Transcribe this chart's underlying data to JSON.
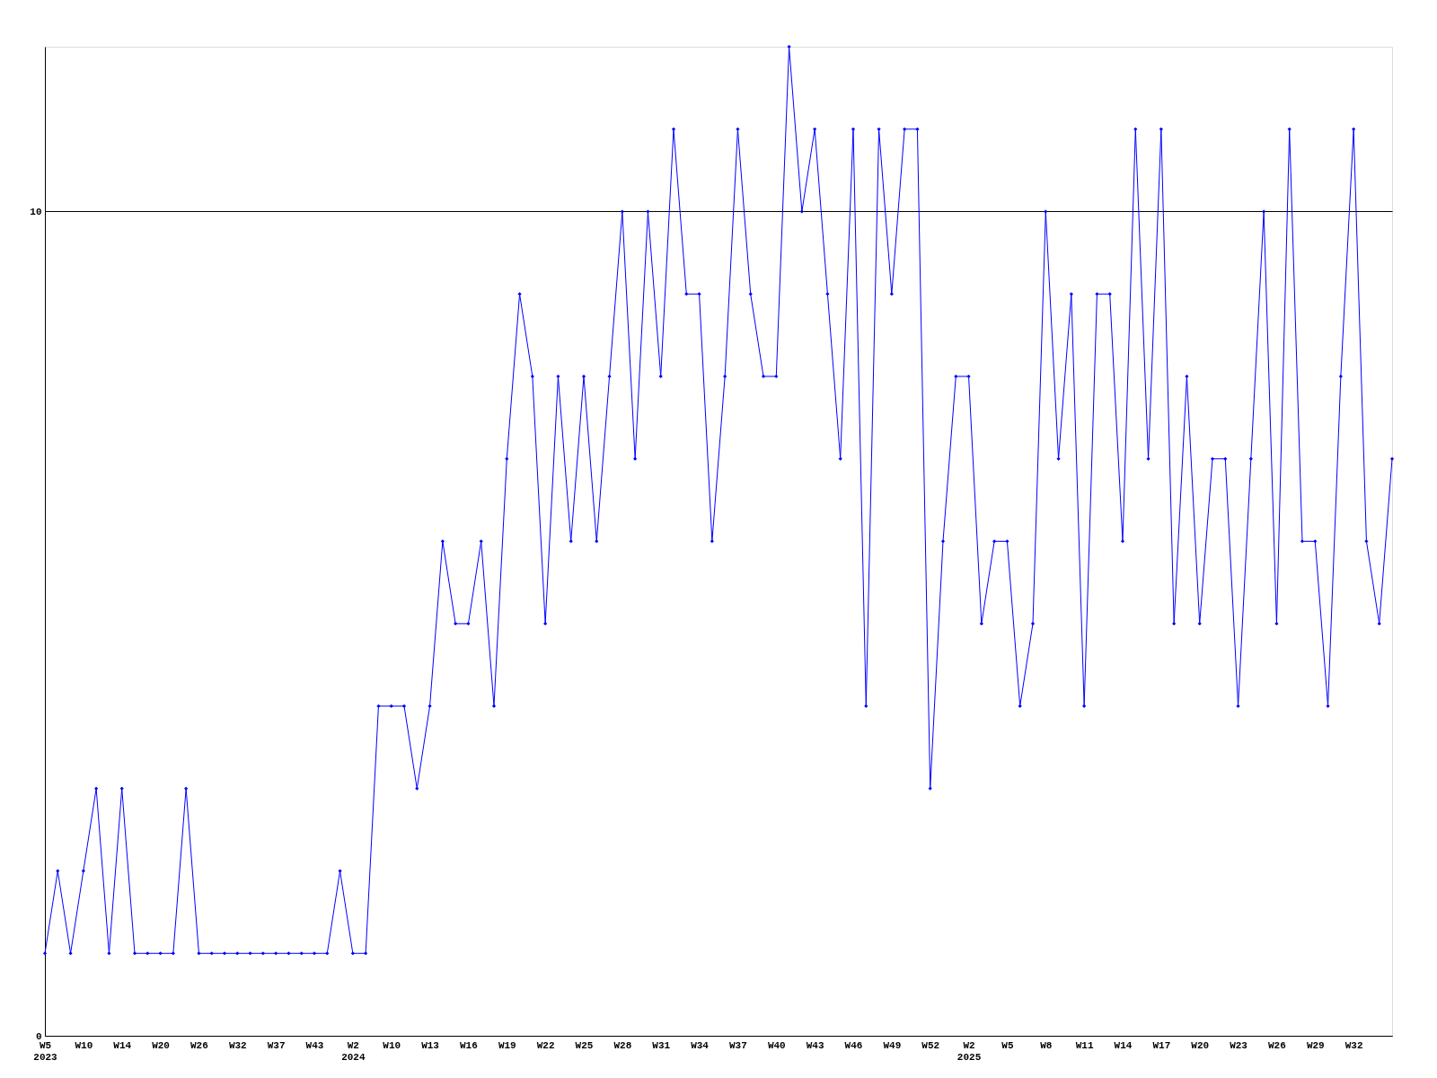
{
  "chart_data": {
    "type": "line",
    "categories": [
      "W5\n2023",
      null,
      null,
      "W10",
      null,
      null,
      "W14",
      null,
      null,
      "W20",
      null,
      null,
      "W26",
      null,
      null,
      "W32",
      null,
      null,
      "W37",
      null,
      null,
      "W43",
      null,
      null,
      "W2\n2024",
      null,
      null,
      "W10",
      null,
      null,
      "W13",
      null,
      null,
      "W16",
      null,
      null,
      "W19",
      null,
      null,
      "W22",
      null,
      null,
      "W25",
      null,
      null,
      "W28",
      null,
      null,
      "W31",
      null,
      null,
      "W34",
      null,
      null,
      "W37",
      null,
      null,
      "W40",
      null,
      null,
      "W43",
      null,
      null,
      "W46",
      null,
      null,
      "W49",
      null,
      null,
      "W52",
      null,
      null,
      "W2\n2025",
      null,
      null,
      "W5",
      null,
      null,
      "W8",
      null,
      null,
      "W11",
      null,
      null,
      "W14",
      null,
      null,
      "W17",
      null,
      null,
      "W20",
      null,
      null,
      "W23",
      null,
      null,
      "W26",
      null,
      null,
      "W29",
      null,
      null,
      "W32",
      null,
      null,
      null
    ],
    "series": [
      {
        "color": "#0000ff",
        "values": [
          1,
          2,
          1,
          2,
          3,
          1,
          3,
          1,
          1,
          1,
          1,
          3,
          1,
          1,
          1,
          1,
          1,
          1,
          1,
          1,
          1,
          1,
          1,
          2,
          1,
          1,
          4,
          4,
          4,
          3,
          4,
          6,
          5,
          5,
          6,
          4,
          7,
          9,
          8,
          5,
          8,
          6,
          8,
          6,
          8,
          10,
          7,
          10,
          8,
          11,
          9,
          9,
          6,
          8,
          11,
          9,
          8,
          8,
          12,
          10,
          11,
          9,
          7,
          11,
          4,
          11,
          9,
          11,
          11,
          3,
          6,
          8,
          8,
          5,
          6,
          6,
          4,
          5,
          10,
          7,
          9,
          4,
          9,
          9,
          6,
          11,
          7,
          11,
          5,
          8,
          5,
          7,
          7,
          4,
          7,
          10,
          5,
          11,
          6,
          6,
          4,
          8,
          11,
          6,
          5,
          7
        ]
      }
    ],
    "ylim": [
      0,
      12
    ],
    "yticks": [
      0,
      10
    ],
    "grid": "y",
    "marker": "diamond",
    "line_style": "solid"
  }
}
